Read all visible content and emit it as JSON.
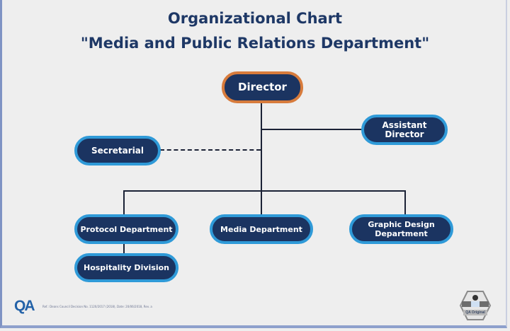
{
  "title": {
    "line1": "Organizational Chart",
    "line2": "\"Media and Public Relations Department\""
  },
  "nodes": {
    "director": "Director",
    "assistant_director": "Assistant Director",
    "secretarial": "Secretarial",
    "protocol": "Protocol Department",
    "media": "Media Department",
    "graphic": "Graphic Design Department",
    "hospitality": "Hospitality Division"
  },
  "footer": {
    "logo": "QA",
    "reference": "Ref.: Deans Council Decision No. 1120/2017 (2018), Date: 20/06/2018, Rev. a",
    "badge": "QA Original"
  },
  "colors": {
    "node_fill": "#1b3461",
    "node_border": "#2f9ad8",
    "director_border": "#d77b3c",
    "title": "#1e3866"
  }
}
